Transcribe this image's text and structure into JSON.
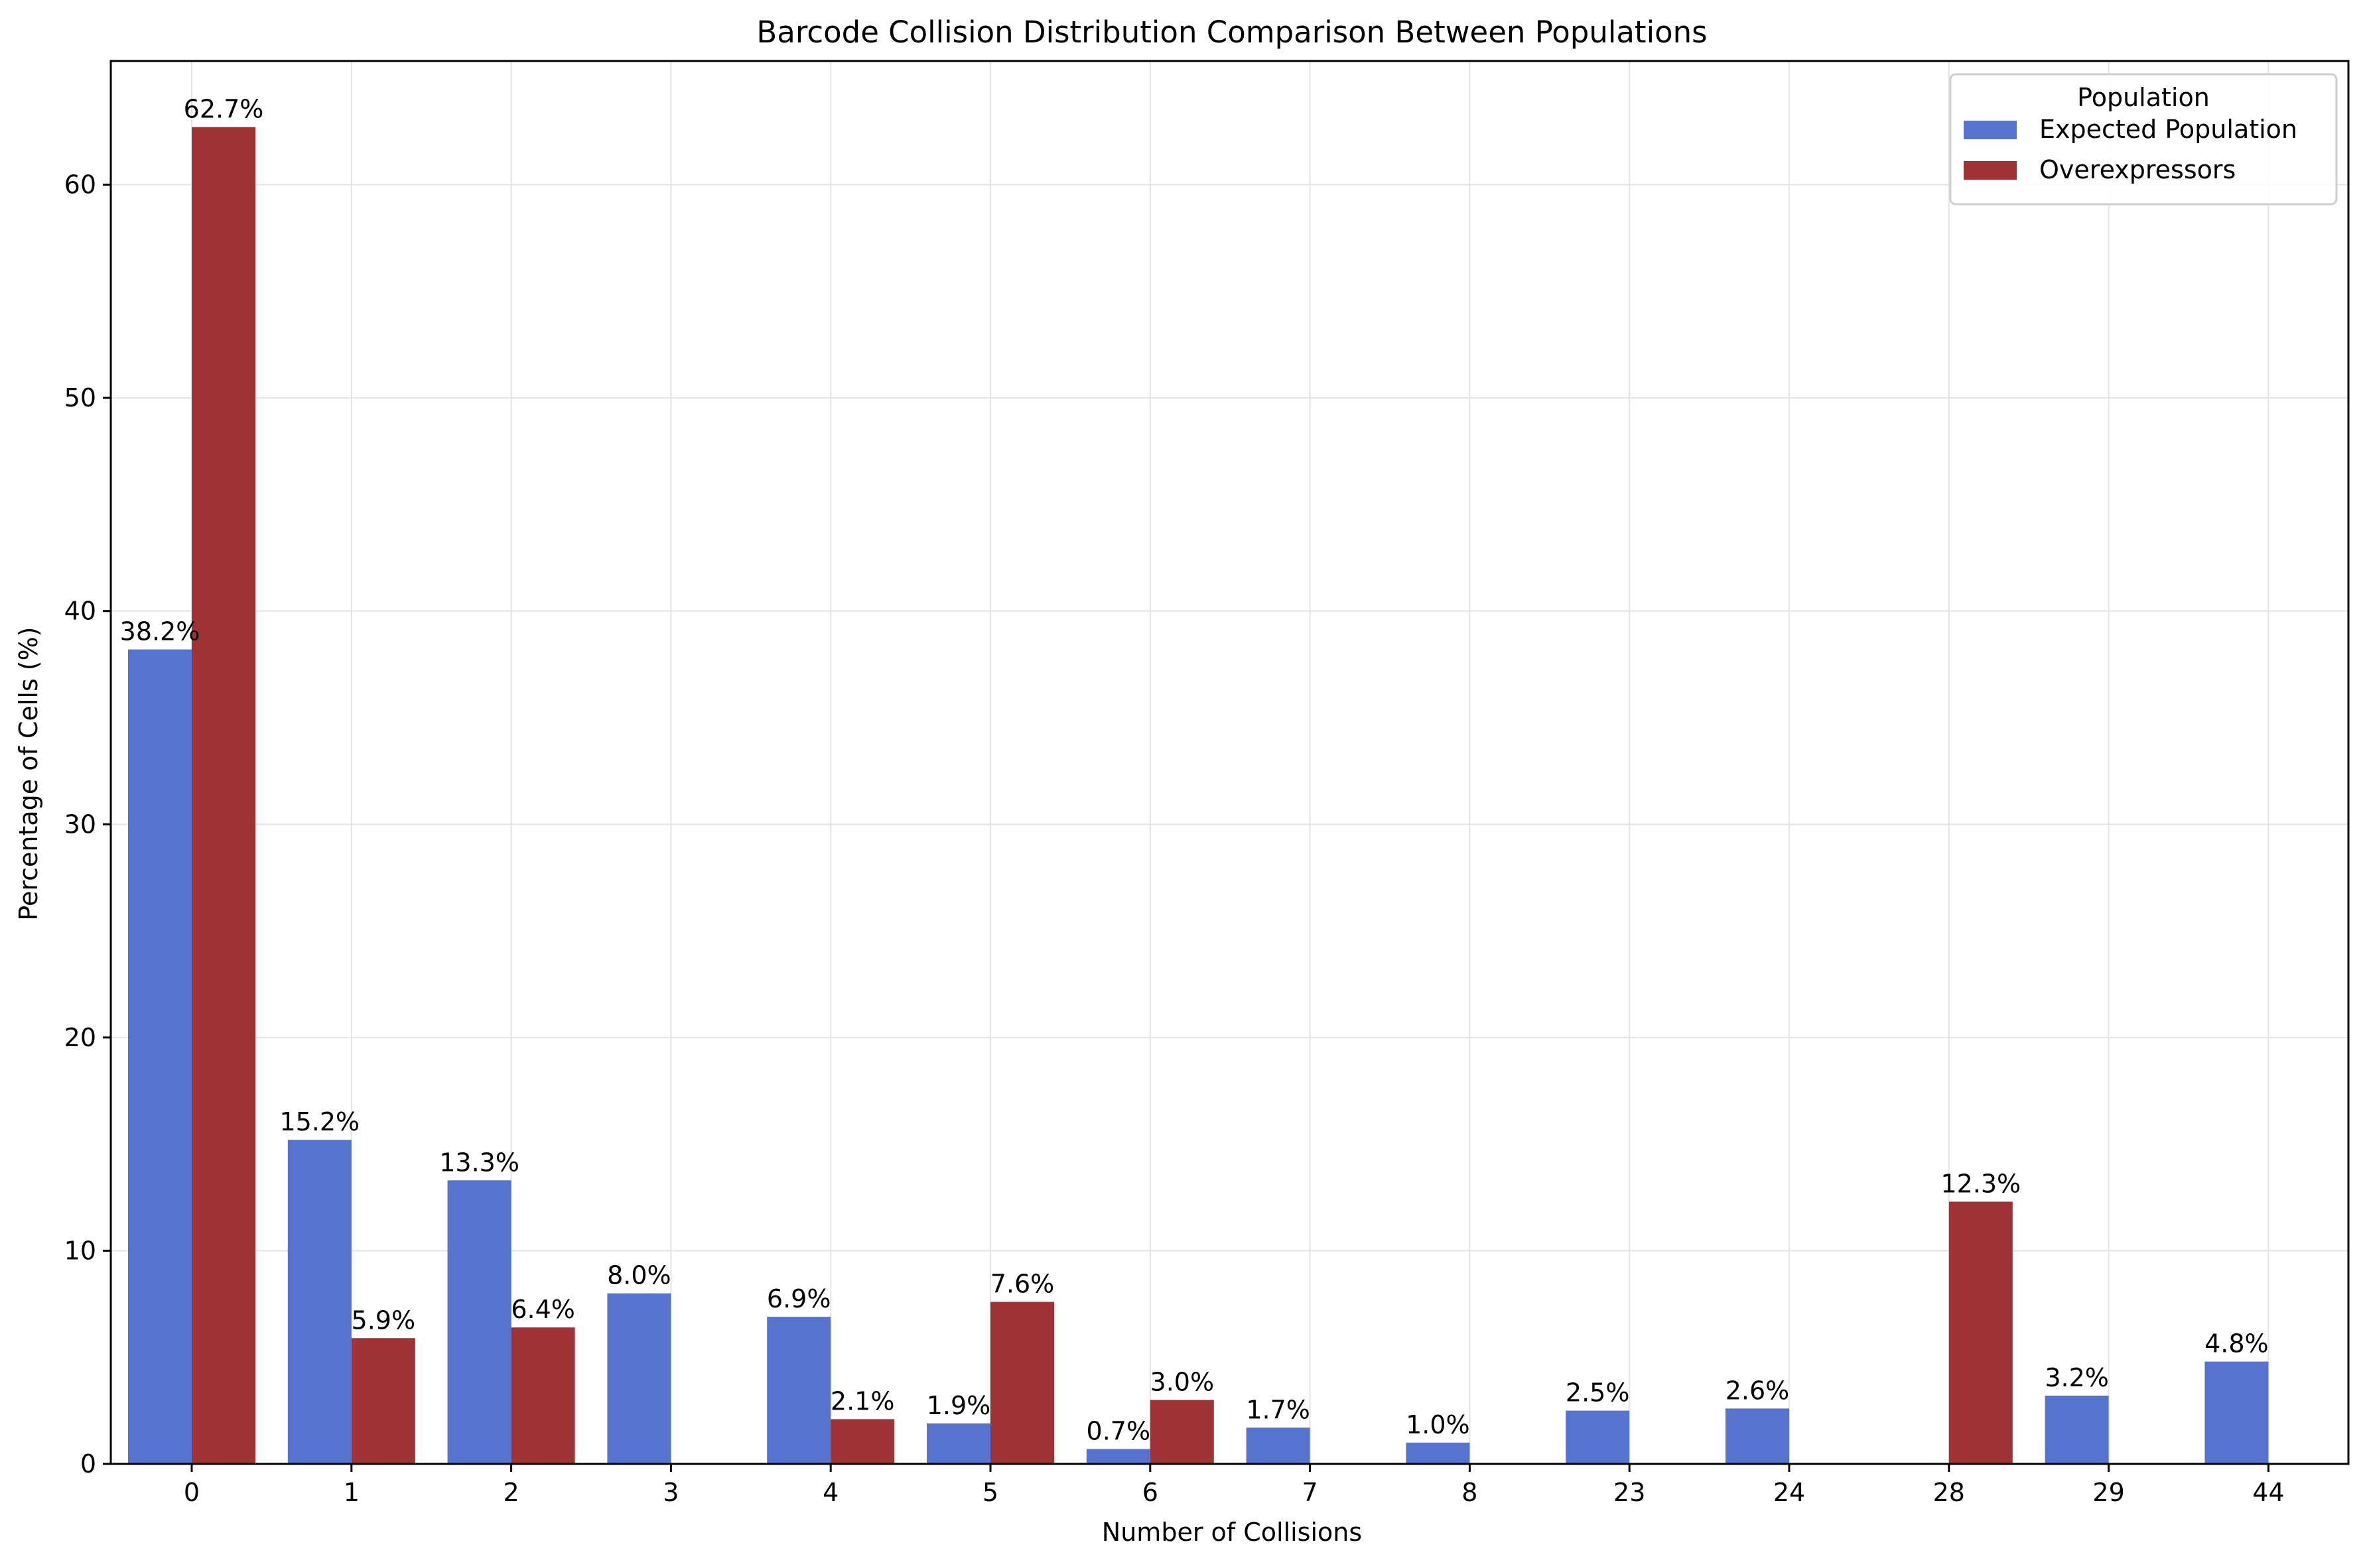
{
  "chart_data": {
    "type": "bar",
    "title": "Barcode Collision Distribution Comparison Between Populations",
    "xlabel": "Number of Collisions",
    "ylabel": "Percentage of Cells (%)",
    "categories": [
      "0",
      "1",
      "2",
      "3",
      "4",
      "5",
      "6",
      "7",
      "8",
      "23",
      "24",
      "28",
      "29",
      "44"
    ],
    "series": [
      {
        "name": "Expected Population",
        "color": "#5573cf",
        "values": [
          38.2,
          15.2,
          13.3,
          8.0,
          6.9,
          1.9,
          0.7,
          1.7,
          1.0,
          2.5,
          2.6,
          null,
          3.2,
          4.8
        ],
        "labels": [
          "38.2%",
          "15.2%",
          "13.3%",
          "8.0%",
          "6.9%",
          "1.9%",
          "0.7%",
          "1.7%",
          "1.0%",
          "2.5%",
          "2.6%",
          "",
          "3.2%",
          "4.8%"
        ]
      },
      {
        "name": "Overexpressors",
        "color": "#a03236",
        "values": [
          62.7,
          5.9,
          6.4,
          null,
          2.1,
          7.6,
          3.0,
          null,
          null,
          null,
          null,
          12.3,
          null,
          null
        ],
        "labels": [
          "62.7%",
          "5.9%",
          "6.4%",
          "",
          "2.1%",
          "7.6%",
          "3.0%",
          "",
          "",
          "",
          "",
          "12.3%",
          "",
          ""
        ]
      }
    ],
    "ylim": [
      0,
      65.8
    ],
    "yticks": [
      0,
      10,
      20,
      30,
      40,
      50,
      60
    ],
    "ytick_labels": [
      "0",
      "10",
      "20",
      "30",
      "40",
      "50",
      "60"
    ],
    "grid": true,
    "legend": {
      "title": "Population",
      "position": "top-right",
      "entries": [
        "Expected Population",
        "Overexpressors"
      ]
    }
  }
}
